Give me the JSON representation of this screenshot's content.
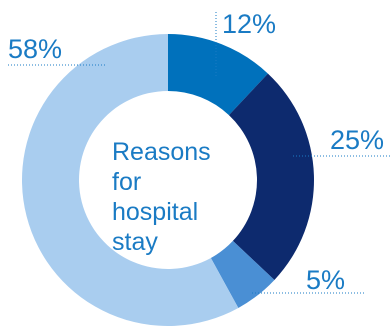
{
  "chart_data": {
    "type": "pie",
    "title_lines": [
      "Reasons",
      "for",
      "hospital",
      "stay"
    ],
    "categories": [
      "",
      "",
      "",
      ""
    ],
    "values": [
      12,
      25,
      5,
      58
    ],
    "labels": [
      "12%",
      "25%",
      "5%",
      "58%"
    ],
    "colors": [
      "#0071bc",
      "#0d2a6e",
      "#4a8fd4",
      "#a9cdef"
    ],
    "label_color": "#1a7bc4",
    "donut": true,
    "legend": "none"
  }
}
